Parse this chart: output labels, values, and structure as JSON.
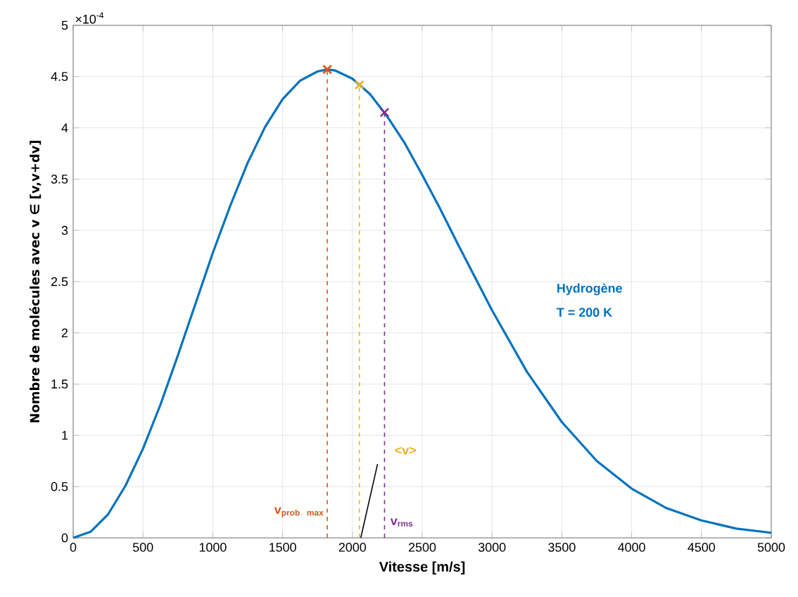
{
  "chart_data": {
    "type": "line",
    "xlabel": "Vitesse [m/s]",
    "ylabel": "Nombre de molécules avec v ∈ [v,v+dv]",
    "xlim": [
      0,
      5000
    ],
    "ylim": [
      0,
      5
    ],
    "xticks": [
      0,
      500,
      1000,
      1500,
      2000,
      2500,
      3000,
      3500,
      4000,
      4500,
      5000
    ],
    "yticks": [
      0,
      0.5,
      1,
      1.5,
      2,
      2.5,
      3,
      3.5,
      4,
      4.5,
      5
    ],
    "grid": true,
    "series": [
      {
        "color": "#0072bd",
        "x": [
          0,
          125,
          250,
          375,
          500,
          625,
          750,
          875,
          1000,
          1125,
          1250,
          1375,
          1500,
          1625,
          1750,
          1820,
          1875,
          2000,
          2125,
          2250,
          2375,
          2500,
          2625,
          2750,
          2875,
          3000,
          3250,
          3500,
          3750,
          4000,
          4250,
          4500,
          4750,
          5000
        ],
        "values": [
          0,
          0.06,
          0.23,
          0.51,
          0.87,
          1.3,
          1.78,
          2.28,
          2.78,
          3.24,
          3.66,
          4.01,
          4.28,
          4.46,
          4.55,
          4.57,
          4.56,
          4.48,
          4.33,
          4.11,
          3.85,
          3.54,
          3.22,
          2.88,
          2.55,
          2.22,
          1.62,
          1.13,
          0.75,
          0.48,
          0.29,
          0.17,
          0.09,
          0.05
        ]
      },
      {
        "color": "#d95319",
        "x": [
          1820,
          1820
        ],
        "values": [
          0,
          4.57
        ],
        "line_style": "dashed"
      },
      {
        "color": "#edb120",
        "x": [
          2050,
          2050
        ],
        "values": [
          0,
          4.42
        ],
        "line_style": "dashed"
      },
      {
        "color": "#7e2f8e",
        "x": [
          2230,
          2230
        ],
        "values": [
          0,
          4.15
        ],
        "line_style": "dashed"
      },
      {
        "type": "scatter",
        "marker": "cross",
        "color": "#d95319",
        "x": [
          1820
        ],
        "values": [
          4.57
        ]
      },
      {
        "type": "scatter",
        "marker": "cross",
        "color": "#edb120",
        "x": [
          2050
        ],
        "values": [
          4.42
        ]
      },
      {
        "type": "scatter",
        "marker": "cross",
        "color": "#7e2f8e",
        "x": [
          2230
        ],
        "values": [
          4.15
        ]
      },
      {
        "color": "#000000",
        "x": [
          2060,
          2180
        ],
        "values": [
          0,
          0.72
        ]
      }
    ],
    "annotations": [
      "×10$^{-4}$",
      "\\mathbf{v_{prob.\\ max}}",
      "<v>",
      "v$_{rms}$",
      "Hydrogène",
      "T = 200 K"
    ]
  }
}
